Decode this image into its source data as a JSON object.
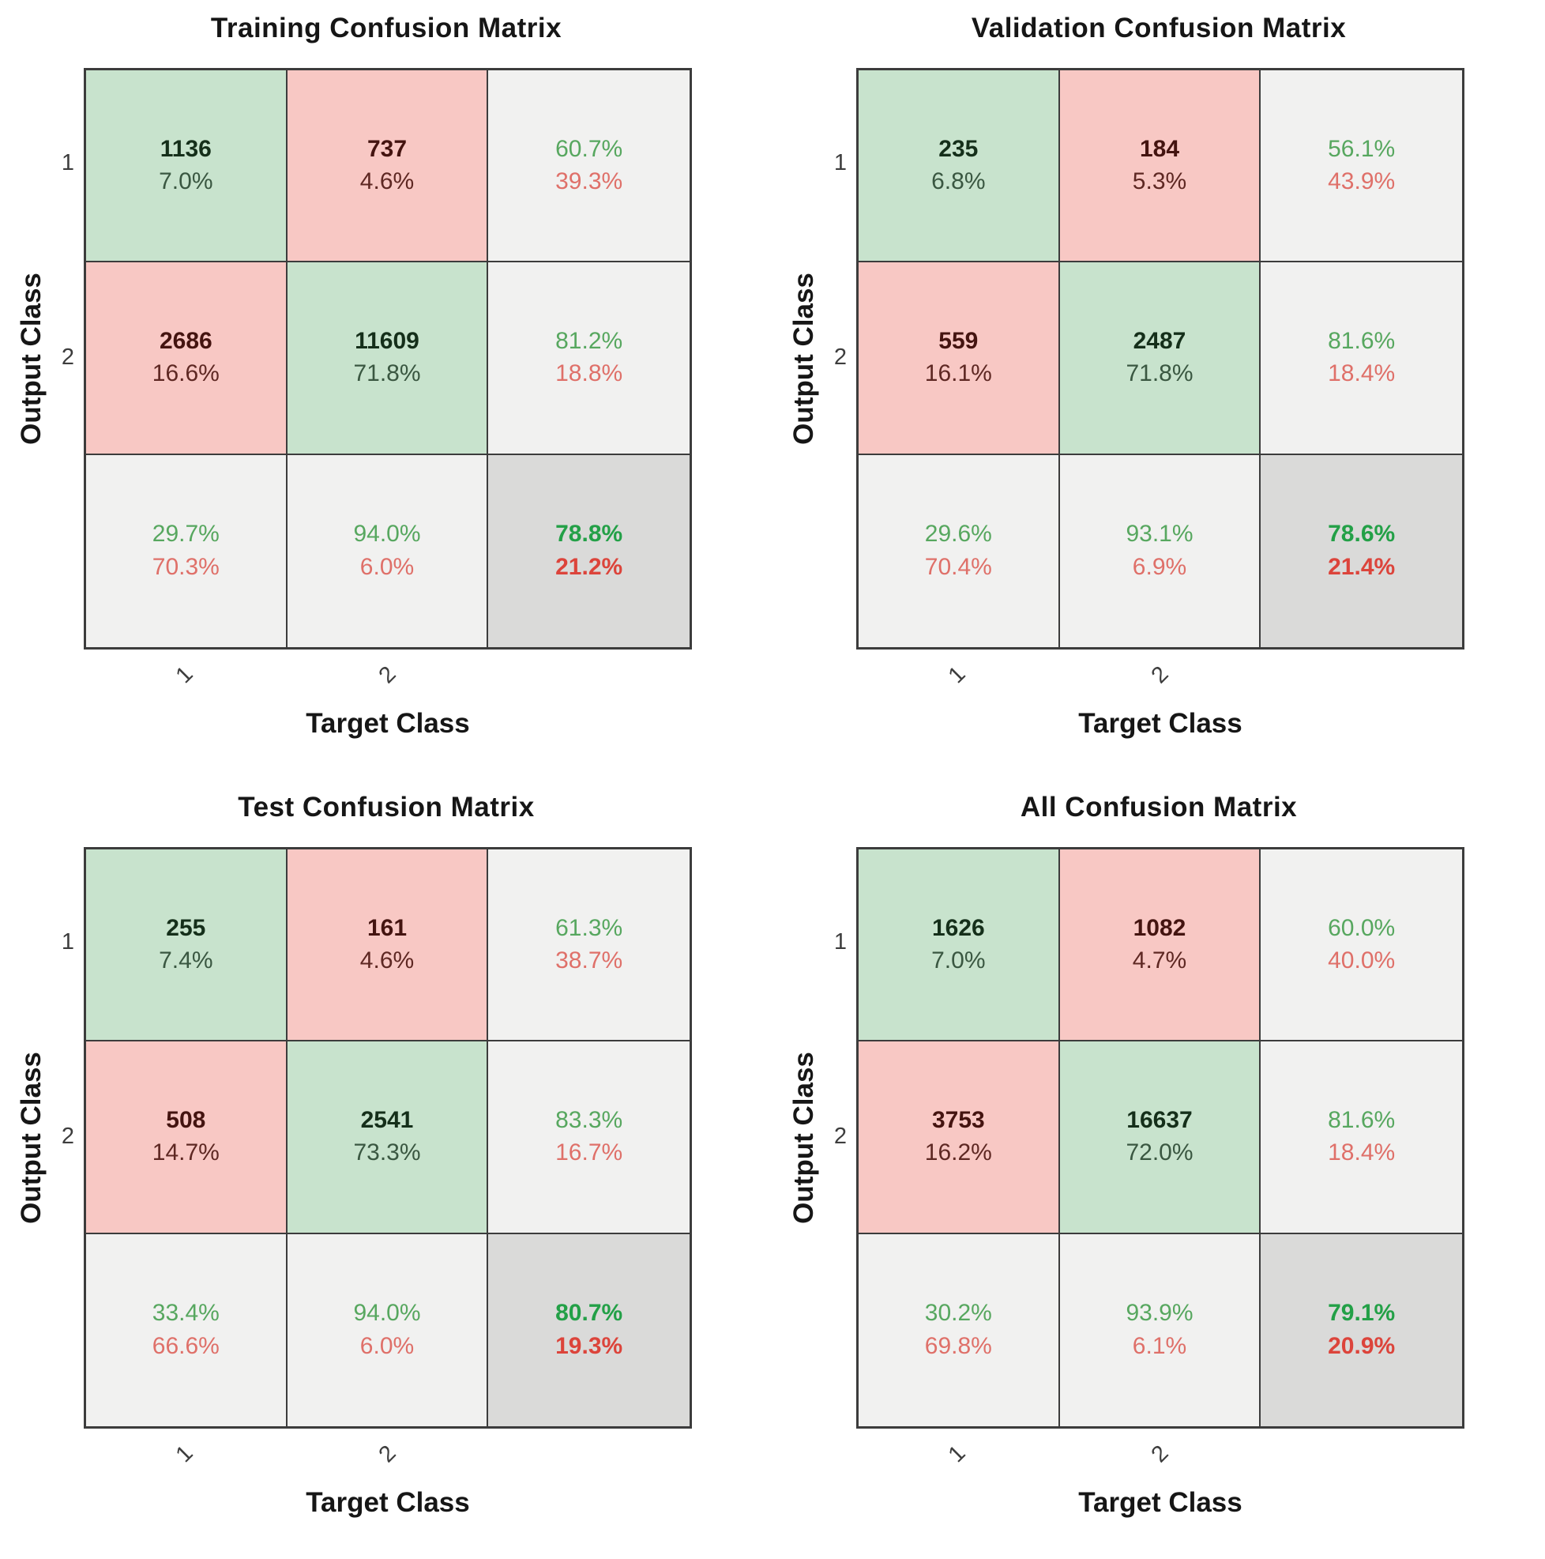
{
  "colors": {
    "correct_cell_fill": "#C8E3CD",
    "incorrect_cell_fill": "#F8C8C4",
    "summary_cell_fill": "#F1F1F0",
    "total_cell_fill": "#DADAD9",
    "grid_line": "#3c3c3c",
    "summary_green_text": "#57A75F",
    "summary_red_text": "#DF7069",
    "total_green_text": "#23A047",
    "total_red_text": "#DC443B"
  },
  "panels": [
    {
      "title": "Training Confusion Matrix",
      "ylabel": "Output Class",
      "xlabel": "Target Class",
      "yticks": [
        "1",
        "2"
      ],
      "xticks": [
        "1",
        "2"
      ],
      "cells": [
        {
          "type": "green",
          "line1": "1136",
          "line2": "7.0%"
        },
        {
          "type": "red",
          "line1": "737",
          "line2": "4.6%"
        },
        {
          "type": "summary",
          "line1": "60.7%",
          "line2": "39.3%"
        },
        {
          "type": "red",
          "line1": "2686",
          "line2": "16.6%"
        },
        {
          "type": "green",
          "line1": "11609",
          "line2": "71.8%"
        },
        {
          "type": "summary",
          "line1": "81.2%",
          "line2": "18.8%"
        },
        {
          "type": "summary",
          "line1": "29.7%",
          "line2": "70.3%"
        },
        {
          "type": "summary",
          "line1": "94.0%",
          "line2": "6.0%"
        },
        {
          "type": "total",
          "line1": "78.8%",
          "line2": "21.2%"
        }
      ]
    },
    {
      "title": "Validation Confusion Matrix",
      "ylabel": "Output Class",
      "xlabel": "Target Class",
      "yticks": [
        "1",
        "2"
      ],
      "xticks": [
        "1",
        "2"
      ],
      "cells": [
        {
          "type": "green",
          "line1": "235",
          "line2": "6.8%"
        },
        {
          "type": "red",
          "line1": "184",
          "line2": "5.3%"
        },
        {
          "type": "summary",
          "line1": "56.1%",
          "line2": "43.9%"
        },
        {
          "type": "red",
          "line1": "559",
          "line2": "16.1%"
        },
        {
          "type": "green",
          "line1": "2487",
          "line2": "71.8%"
        },
        {
          "type": "summary",
          "line1": "81.6%",
          "line2": "18.4%"
        },
        {
          "type": "summary",
          "line1": "29.6%",
          "line2": "70.4%"
        },
        {
          "type": "summary",
          "line1": "93.1%",
          "line2": "6.9%"
        },
        {
          "type": "total",
          "line1": "78.6%",
          "line2": "21.4%"
        }
      ]
    },
    {
      "title": "Test Confusion Matrix",
      "ylabel": "Output Class",
      "xlabel": "Target Class",
      "yticks": [
        "1",
        "2"
      ],
      "xticks": [
        "1",
        "2"
      ],
      "cells": [
        {
          "type": "green",
          "line1": "255",
          "line2": "7.4%"
        },
        {
          "type": "red",
          "line1": "161",
          "line2": "4.6%"
        },
        {
          "type": "summary",
          "line1": "61.3%",
          "line2": "38.7%"
        },
        {
          "type": "red",
          "line1": "508",
          "line2": "14.7%"
        },
        {
          "type": "green",
          "line1": "2541",
          "line2": "73.3%"
        },
        {
          "type": "summary",
          "line1": "83.3%",
          "line2": "16.7%"
        },
        {
          "type": "summary",
          "line1": "33.4%",
          "line2": "66.6%"
        },
        {
          "type": "summary",
          "line1": "94.0%",
          "line2": "6.0%"
        },
        {
          "type": "total",
          "line1": "80.7%",
          "line2": "19.3%"
        }
      ]
    },
    {
      "title": "All Confusion Matrix",
      "ylabel": "Output Class",
      "xlabel": "Target Class",
      "yticks": [
        "1",
        "2"
      ],
      "xticks": [
        "1",
        "2"
      ],
      "cells": [
        {
          "type": "green",
          "line1": "1626",
          "line2": "7.0%"
        },
        {
          "type": "red",
          "line1": "1082",
          "line2": "4.7%"
        },
        {
          "type": "summary",
          "line1": "60.0%",
          "line2": "40.0%"
        },
        {
          "type": "red",
          "line1": "3753",
          "line2": "16.2%"
        },
        {
          "type": "green",
          "line1": "16637",
          "line2": "72.0%"
        },
        {
          "type": "summary",
          "line1": "81.6%",
          "line2": "18.4%"
        },
        {
          "type": "summary",
          "line1": "30.2%",
          "line2": "69.8%"
        },
        {
          "type": "summary",
          "line1": "93.9%",
          "line2": "6.1%"
        },
        {
          "type": "total",
          "line1": "79.1%",
          "line2": "20.9%"
        }
      ]
    }
  ],
  "chart_data": [
    {
      "type": "heatmap",
      "title": "Training Confusion Matrix",
      "xlabel": "Target Class",
      "ylabel": "Output Class",
      "classes": [
        "1",
        "2"
      ],
      "counts": [
        [
          1136,
          737
        ],
        [
          2686,
          11609
        ]
      ],
      "counts_pct_of_total": [
        [
          "7.0%",
          "4.6%"
        ],
        [
          "16.6%",
          "71.8%"
        ]
      ],
      "row_summary_green_red": [
        [
          "60.7%",
          "39.3%"
        ],
        [
          "81.2%",
          "18.8%"
        ]
      ],
      "col_summary_green_red": [
        [
          "29.7%",
          "70.3%"
        ],
        [
          "94.0%",
          "6.0%"
        ]
      ],
      "overall_accuracy_green_red": [
        "78.8%",
        "21.2%"
      ]
    },
    {
      "type": "heatmap",
      "title": "Validation Confusion Matrix",
      "xlabel": "Target Class",
      "ylabel": "Output Class",
      "classes": [
        "1",
        "2"
      ],
      "counts": [
        [
          235,
          184
        ],
        [
          559,
          2487
        ]
      ],
      "counts_pct_of_total": [
        [
          "6.8%",
          "5.3%"
        ],
        [
          "16.1%",
          "71.8%"
        ]
      ],
      "row_summary_green_red": [
        [
          "56.1%",
          "43.9%"
        ],
        [
          "81.6%",
          "18.4%"
        ]
      ],
      "col_summary_green_red": [
        [
          "29.6%",
          "70.4%"
        ],
        [
          "93.1%",
          "6.9%"
        ]
      ],
      "overall_accuracy_green_red": [
        "78.6%",
        "21.4%"
      ]
    },
    {
      "type": "heatmap",
      "title": "Test Confusion Matrix",
      "xlabel": "Target Class",
      "ylabel": "Output Class",
      "classes": [
        "1",
        "2"
      ],
      "counts": [
        [
          255,
          161
        ],
        [
          508,
          2541
        ]
      ],
      "counts_pct_of_total": [
        [
          "7.4%",
          "4.6%"
        ],
        [
          "14.7%",
          "73.3%"
        ]
      ],
      "row_summary_green_red": [
        [
          "61.3%",
          "38.7%"
        ],
        [
          "83.3%",
          "16.7%"
        ]
      ],
      "col_summary_green_red": [
        [
          "33.4%",
          "66.6%"
        ],
        [
          "94.0%",
          "6.0%"
        ]
      ],
      "overall_accuracy_green_red": [
        "80.7%",
        "19.3%"
      ]
    },
    {
      "type": "heatmap",
      "title": "All Confusion Matrix",
      "xlabel": "Target Class",
      "ylabel": "Output Class",
      "classes": [
        "1",
        "2"
      ],
      "counts": [
        [
          1626,
          1082
        ],
        [
          3753,
          16637
        ]
      ],
      "counts_pct_of_total": [
        [
          "7.0%",
          "4.7%"
        ],
        [
          "16.2%",
          "72.0%"
        ]
      ],
      "row_summary_green_red": [
        [
          "60.0%",
          "40.0%"
        ],
        [
          "81.6%",
          "18.4%"
        ]
      ],
      "col_summary_green_red": [
        [
          "30.2%",
          "69.8%"
        ],
        [
          "93.9%",
          "6.1%"
        ]
      ],
      "overall_accuracy_green_red": [
        "79.1%",
        "20.9%"
      ]
    }
  ]
}
